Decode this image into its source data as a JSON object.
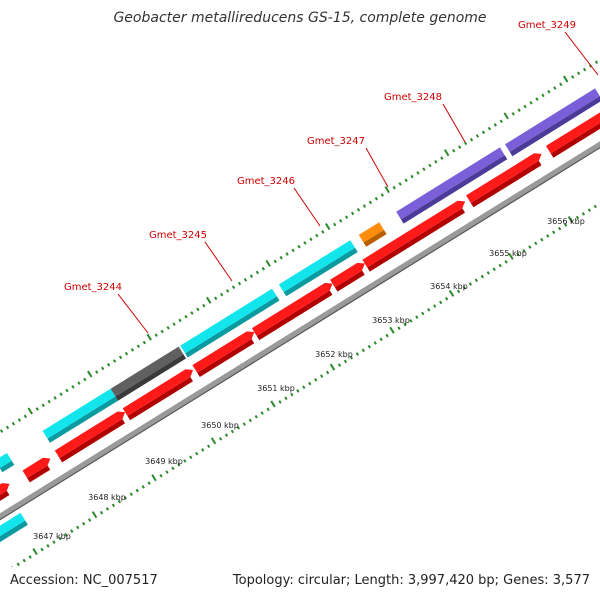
{
  "title": "Geobacter metallireducens GS-15, complete genome",
  "accession_text": "Accession: NC_007517",
  "summary_text": "Topology: circular; Length: 3,997,420 bp; Genes: 3,577",
  "colors": {
    "background": "#ffffff",
    "backbone": "#9a9a9a",
    "cds_red": "#ff1a1a",
    "gene_cyan": "#12e6ec",
    "gene_gray": "#606060",
    "gene_orange": "#ff8c0a",
    "gene_purple": "#7a5fd8",
    "label_red": "#cc0000",
    "tick_green": "#2a8a2a"
  },
  "gene_labels": [
    {
      "id": "gene-label-gmet-3244",
      "text": "Gmet_3244"
    },
    {
      "id": "gene-label-gmet-3245",
      "text": "Gmet_3245"
    },
    {
      "id": "gene-label-gmet-3246",
      "text": "Gmet_3246"
    },
    {
      "id": "gene-label-gmet-3247",
      "text": "Gmet_3247"
    },
    {
      "id": "gene-label-gmet-3248",
      "text": "Gmet_3248"
    },
    {
      "id": "gene-label-gmet-3249",
      "text": "Gmet_3249"
    }
  ],
  "scale_labels": [
    "3647 kbp",
    "3648 kbp",
    "3649 kbp",
    "3650 kbp",
    "3651 kbp",
    "3652 kbp",
    "3653 kbp",
    "3654 kbp",
    "3655 kbp",
    "3656 kbp"
  ]
}
